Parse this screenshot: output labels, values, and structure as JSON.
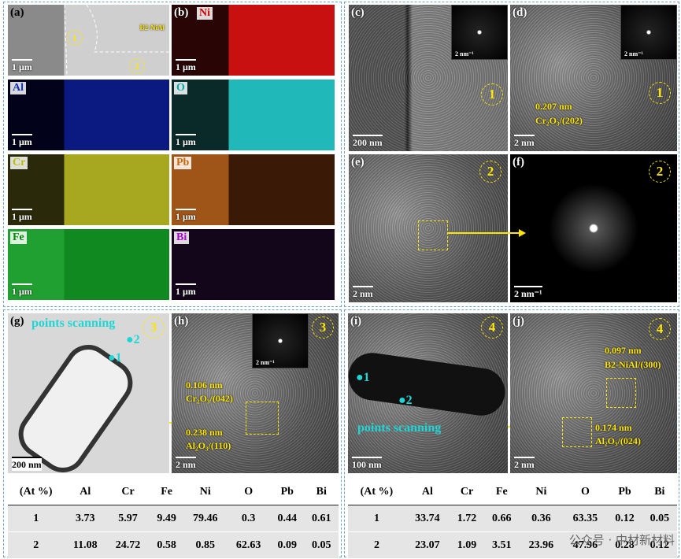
{
  "panels": {
    "a": {
      "label": "(a)",
      "scale_bar": "1 μm",
      "annotation": "B2-NiAl",
      "region_1": "1",
      "region_2": "2"
    },
    "maps": [
      {
        "label": "(b)",
        "element": "Ni",
        "scale_bar": "1 μm"
      },
      {
        "element": "Al",
        "scale_bar": "1 μm"
      },
      {
        "element": "O",
        "scale_bar": "1 μm"
      },
      {
        "element": "Cr",
        "scale_bar": "1 μm"
      },
      {
        "element": "Pb",
        "scale_bar": "1 μm"
      },
      {
        "element": "Fe",
        "scale_bar": "1 μm"
      },
      {
        "element": "Bi",
        "scale_bar": "1 μm"
      }
    ],
    "c": {
      "label": "(c)",
      "scale_bar": "200 nm",
      "inset_scale": "2 nm⁻¹",
      "region": "1"
    },
    "d": {
      "label": "(d)",
      "scale_bar": "2 nm",
      "inset_scale": "2 nm⁻¹",
      "region": "1",
      "spacing": "0.207 nm",
      "plane": "Cr₂O₃/(202)"
    },
    "e": {
      "label": "(e)",
      "scale_bar": "2 nm",
      "region": "2"
    },
    "f": {
      "label": "(f)",
      "scale_bar": "2 nm⁻¹",
      "region": "2"
    },
    "g": {
      "label": "(g)",
      "scale_bar": "200 nm",
      "title": "points scanning",
      "region": "3",
      "point_1": "1",
      "point_2": "2"
    },
    "h": {
      "label": "(h)",
      "scale_bar": "2 nm",
      "inset_scale": "2 nm⁻¹",
      "region": "3",
      "spacing_1": "0.106 nm",
      "plane_1": "Cr₂O₃/(042)",
      "spacing_2": "0.238 nm",
      "plane_2": "Al₂O₃/(110)"
    },
    "i": {
      "label": "(i)",
      "scale_bar": "100 nm",
      "title": "points scanning",
      "region": "4",
      "point_1": "1",
      "point_2": "2"
    },
    "j": {
      "label": "(j)",
      "scale_bar": "2 nm",
      "region": "4",
      "spacing_1": "0.097 nm",
      "plane_1": "B2-NiAl/(300)",
      "spacing_2": "0.174 nm",
      "plane_2": "Al₂O₃/(024)"
    }
  },
  "tables": {
    "left": {
      "header": [
        "(At %)",
        "Al",
        "Cr",
        "Fe",
        "Ni",
        "O",
        "Pb",
        "Bi"
      ],
      "rows": [
        [
          "1",
          3.73,
          5.97,
          9.49,
          79.46,
          0.3,
          0.44,
          0.61
        ],
        [
          "2",
          11.08,
          24.72,
          0.58,
          0.85,
          62.63,
          0.09,
          0.05
        ]
      ]
    },
    "right": {
      "header": [
        "(At %)",
        "Al",
        "Cr",
        "Fe",
        "Ni",
        "O",
        "Pb",
        "Bi"
      ],
      "rows": [
        [
          "1",
          33.74,
          1.72,
          0.66,
          0.36,
          63.35,
          0.12,
          0.05
        ],
        [
          "2",
          23.07,
          1.09,
          3.51,
          23.96,
          47.96,
          0.28,
          0.12
        ]
      ]
    }
  },
  "watermark": "公众号 · 中材新材料"
}
